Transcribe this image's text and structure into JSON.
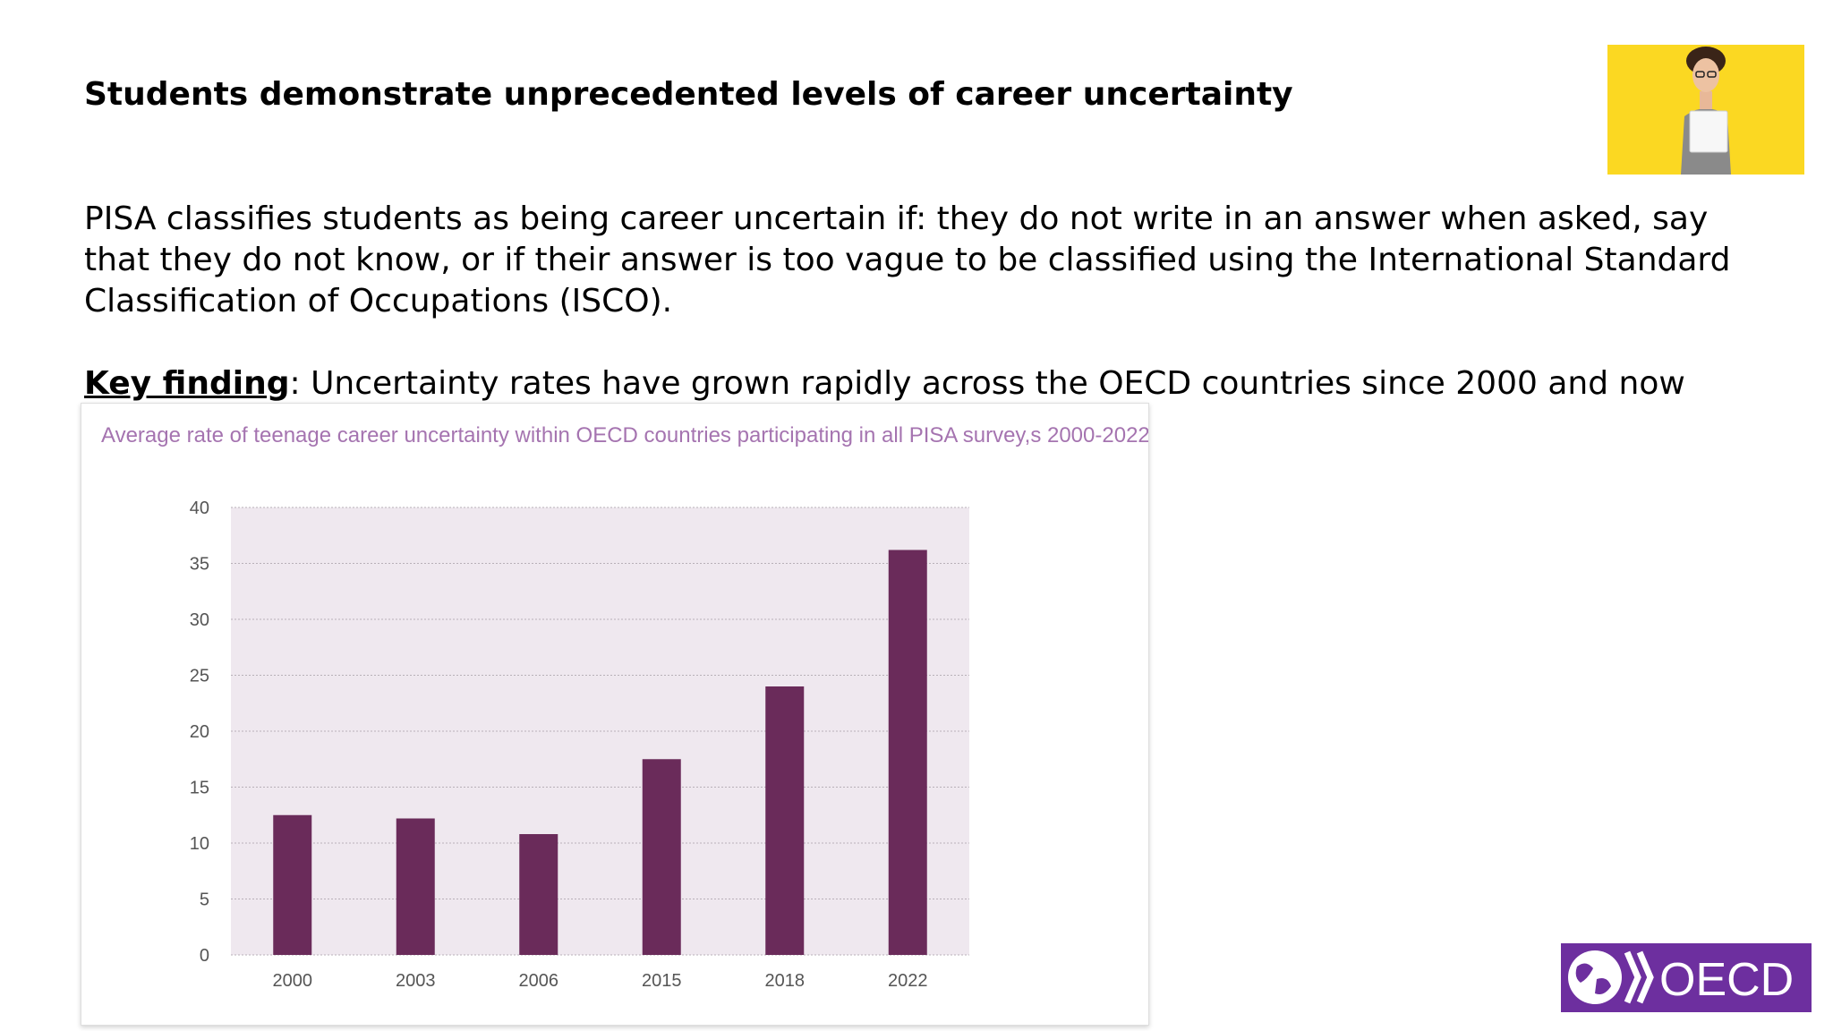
{
  "slide": {
    "title": "Students demonstrate unprecedented levels of career uncertainty",
    "paragraph": "PISA classifies students as being career uncertain if: they do not write in an answer when asked, say that they do not know, or if their answer is too vague to be classified using the International Standard Classification of Occupations (ISCO).",
    "key_finding_label": "Key finding",
    "key_finding_text": ": Uncertainty rates have grown rapidly across the OECD countries since 2000 and now"
  },
  "logo": {
    "text": "OECD",
    "color": "#6d2f9f"
  },
  "photo": {
    "background": "#fbd822"
  },
  "chart_data": {
    "type": "bar",
    "title": "Average rate of teenage career uncertainty within OECD countries participating in all PISA survey,s 2000-2022",
    "categories": [
      "2000",
      "2003",
      "2006",
      "2015",
      "2018",
      "2022"
    ],
    "values": [
      12.5,
      12.2,
      10.8,
      17.5,
      24,
      36.2
    ],
    "ylim": [
      0,
      40
    ],
    "yticks": [
      0,
      5,
      10,
      15,
      20,
      25,
      30,
      35,
      40
    ],
    "xlabel": "",
    "ylabel": "",
    "grid": true,
    "legend": "none",
    "bar_color": "#6a2b5a",
    "plot_background": "#efe8ef",
    "title_color": "#a574b0"
  }
}
